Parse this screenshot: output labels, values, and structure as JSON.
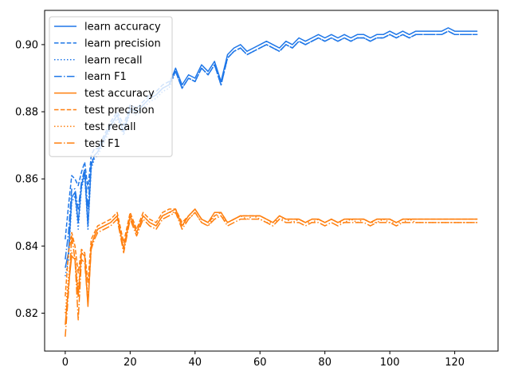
{
  "chart_data": {
    "type": "line",
    "title": "",
    "xlabel": "",
    "ylabel": "",
    "xlim": [
      -6.35,
      133.35
    ],
    "ylim": [
      0.8087,
      0.9102
    ],
    "xticks": [
      0,
      20,
      40,
      60,
      80,
      100,
      120
    ],
    "yticks": [
      0.82,
      0.84,
      0.86,
      0.88,
      0.9
    ],
    "grid": false,
    "legend_position": "top-left",
    "colors": {
      "learn": "#1f77e8",
      "test": "#ff7f0e"
    },
    "series": [
      {
        "name": "learn accuracy",
        "group": "learn",
        "linestyle": "solid",
        "x": [
          0,
          1,
          2,
          3,
          4,
          5,
          6,
          7,
          8,
          9,
          10,
          12,
          14,
          16,
          18,
          20,
          22,
          24,
          26,
          28,
          30,
          32,
          34,
          36,
          38,
          40,
          42,
          44,
          46,
          48,
          50,
          52,
          54,
          56,
          58,
          60,
          62,
          64,
          66,
          68,
          70,
          72,
          74,
          76,
          78,
          80,
          82,
          84,
          86,
          88,
          90,
          92,
          94,
          96,
          98,
          100,
          102,
          104,
          106,
          108,
          110,
          112,
          114,
          116,
          118,
          120,
          122,
          124,
          126,
          127
        ],
        "values": [
          0.8335,
          0.838,
          0.8545,
          0.856,
          0.847,
          0.858,
          0.862,
          0.846,
          0.864,
          0.867,
          0.868,
          0.872,
          0.876,
          0.879,
          0.874,
          0.881,
          0.88,
          0.882,
          0.884,
          0.885,
          0.887,
          0.888,
          0.893,
          0.888,
          0.891,
          0.89,
          0.894,
          0.892,
          0.895,
          0.889,
          0.897,
          0.899,
          0.9,
          0.898,
          0.899,
          0.9,
          0.901,
          0.9,
          0.899,
          0.901,
          0.9,
          0.902,
          0.901,
          0.902,
          0.903,
          0.902,
          0.903,
          0.902,
          0.903,
          0.902,
          0.903,
          0.903,
          0.902,
          0.903,
          0.903,
          0.904,
          0.903,
          0.904,
          0.903,
          0.904,
          0.904,
          0.904,
          0.904,
          0.904,
          0.905,
          0.904,
          0.904,
          0.904,
          0.904,
          0.904
        ]
      },
      {
        "name": "learn precision",
        "group": "learn",
        "linestyle": "dashed",
        "x": [
          0,
          1,
          2,
          3,
          4,
          5,
          6,
          7,
          8,
          9,
          10,
          12,
          14,
          16,
          18,
          20,
          22,
          24,
          26,
          28,
          30,
          32,
          34,
          36,
          38,
          40,
          42,
          44,
          46,
          48,
          50,
          52,
          54,
          56,
          58,
          60,
          62,
          64,
          66,
          68,
          70,
          72,
          74,
          76,
          78,
          80,
          82,
          84,
          86,
          88,
          90,
          92,
          94,
          96,
          98,
          100,
          102,
          104,
          106,
          108,
          110,
          112,
          114,
          116,
          118,
          120,
          122,
          124,
          126,
          127
        ],
        "values": [
          0.842,
          0.852,
          0.861,
          0.86,
          0.858,
          0.862,
          0.865,
          0.857,
          0.867,
          0.869,
          0.869,
          0.873,
          0.877,
          0.88,
          0.876,
          0.882,
          0.881,
          0.883,
          0.885,
          0.886,
          0.888,
          0.889,
          0.892,
          0.887,
          0.89,
          0.889,
          0.893,
          0.891,
          0.894,
          0.888,
          0.896,
          0.898,
          0.899,
          0.897,
          0.898,
          0.899,
          0.9,
          0.899,
          0.898,
          0.9,
          0.899,
          0.901,
          0.9,
          0.901,
          0.902,
          0.901,
          0.902,
          0.901,
          0.902,
          0.901,
          0.902,
          0.902,
          0.901,
          0.902,
          0.902,
          0.903,
          0.902,
          0.903,
          0.902,
          0.903,
          0.903,
          0.903,
          0.903,
          0.903,
          0.904,
          0.903,
          0.903,
          0.903,
          0.903,
          0.903
        ]
      },
      {
        "name": "learn recall",
        "group": "learn",
        "linestyle": "dotted",
        "x": [
          0,
          1,
          2,
          3,
          4,
          5,
          6,
          7,
          8,
          9,
          10,
          12,
          14,
          16,
          18,
          20,
          22,
          24,
          26,
          28,
          30,
          32,
          34,
          36,
          38,
          40,
          42,
          44,
          46,
          48,
          50,
          52,
          54,
          56,
          58,
          60,
          62,
          64,
          66,
          68,
          70,
          72,
          74,
          76,
          78,
          80,
          82,
          84,
          86,
          88,
          90,
          92,
          94,
          96,
          98,
          100,
          102,
          104,
          106,
          108,
          110,
          112,
          114,
          116,
          118,
          120,
          122,
          124,
          126,
          127
        ],
        "values": [
          0.831,
          0.836,
          0.853,
          0.855,
          0.845,
          0.857,
          0.861,
          0.845,
          0.863,
          0.866,
          0.867,
          0.871,
          0.875,
          0.878,
          0.873,
          0.88,
          0.879,
          0.881,
          0.883,
          0.884,
          0.886,
          0.887,
          0.892,
          0.887,
          0.89,
          0.889,
          0.893,
          0.891,
          0.894,
          0.888,
          0.896,
          0.898,
          0.899,
          0.897,
          0.898,
          0.899,
          0.9,
          0.899,
          0.898,
          0.9,
          0.899,
          0.901,
          0.9,
          0.901,
          0.902,
          0.901,
          0.902,
          0.901,
          0.902,
          0.901,
          0.902,
          0.902,
          0.901,
          0.902,
          0.902,
          0.903,
          0.902,
          0.903,
          0.902,
          0.903,
          0.903,
          0.903,
          0.903,
          0.903,
          0.904,
          0.903,
          0.903,
          0.903,
          0.903,
          0.903
        ]
      },
      {
        "name": "learn F1",
        "group": "learn",
        "linestyle": "dashdot",
        "x": [
          0,
          1,
          2,
          3,
          4,
          5,
          6,
          7,
          8,
          9,
          10,
          12,
          14,
          16,
          18,
          20,
          22,
          24,
          26,
          28,
          30,
          32,
          34,
          36,
          38,
          40,
          42,
          44,
          46,
          48,
          50,
          52,
          54,
          56,
          58,
          60,
          62,
          64,
          66,
          68,
          70,
          72,
          74,
          76,
          78,
          80,
          82,
          84,
          86,
          88,
          90,
          92,
          94,
          96,
          98,
          100,
          102,
          104,
          106,
          108,
          110,
          112,
          114,
          116,
          118,
          120,
          122,
          124,
          126,
          127
        ],
        "values": [
          0.836,
          0.844,
          0.857,
          0.857,
          0.851,
          0.859,
          0.863,
          0.851,
          0.865,
          0.867,
          0.868,
          0.872,
          0.876,
          0.879,
          0.874,
          0.881,
          0.88,
          0.882,
          0.884,
          0.885,
          0.887,
          0.888,
          0.892,
          0.887,
          0.89,
          0.889,
          0.893,
          0.891,
          0.894,
          0.888,
          0.896,
          0.898,
          0.899,
          0.897,
          0.898,
          0.899,
          0.9,
          0.899,
          0.898,
          0.9,
          0.899,
          0.901,
          0.9,
          0.901,
          0.902,
          0.901,
          0.902,
          0.901,
          0.902,
          0.901,
          0.902,
          0.902,
          0.901,
          0.902,
          0.902,
          0.903,
          0.902,
          0.903,
          0.902,
          0.903,
          0.903,
          0.903,
          0.903,
          0.903,
          0.904,
          0.903,
          0.903,
          0.903,
          0.903,
          0.903
        ]
      },
      {
        "name": "test accuracy",
        "group": "test",
        "linestyle": "solid",
        "x": [
          0,
          1,
          2,
          3,
          4,
          5,
          6,
          7,
          8,
          9,
          10,
          12,
          14,
          16,
          18,
          20,
          22,
          24,
          26,
          28,
          30,
          32,
          34,
          36,
          38,
          40,
          42,
          44,
          46,
          48,
          50,
          52,
          54,
          56,
          58,
          60,
          62,
          64,
          66,
          68,
          70,
          72,
          74,
          76,
          78,
          80,
          82,
          84,
          86,
          88,
          90,
          92,
          94,
          96,
          98,
          100,
          102,
          104,
          106,
          108,
          110,
          112,
          114,
          116,
          118,
          120,
          122,
          124,
          126,
          127
        ],
        "values": [
          0.8165,
          0.828,
          0.837,
          0.836,
          0.825,
          0.838,
          0.837,
          0.822,
          0.84,
          0.843,
          0.845,
          0.846,
          0.847,
          0.849,
          0.839,
          0.849,
          0.844,
          0.849,
          0.847,
          0.846,
          0.849,
          0.85,
          0.851,
          0.846,
          0.849,
          0.851,
          0.848,
          0.847,
          0.85,
          0.85,
          0.847,
          0.848,
          0.849,
          0.849,
          0.849,
          0.849,
          0.848,
          0.847,
          0.849,
          0.848,
          0.848,
          0.848,
          0.847,
          0.848,
          0.848,
          0.847,
          0.848,
          0.847,
          0.848,
          0.848,
          0.848,
          0.848,
          0.847,
          0.848,
          0.848,
          0.848,
          0.847,
          0.848,
          0.848,
          0.848,
          0.848,
          0.848,
          0.848,
          0.848,
          0.848,
          0.848,
          0.848,
          0.848,
          0.848,
          0.848
        ]
      },
      {
        "name": "test precision",
        "group": "test",
        "linestyle": "dashed",
        "x": [
          0,
          1,
          2,
          3,
          4,
          5,
          6,
          7,
          8,
          9,
          10,
          12,
          14,
          16,
          18,
          20,
          22,
          24,
          26,
          28,
          30,
          32,
          34,
          36,
          38,
          40,
          42,
          44,
          46,
          48,
          50,
          52,
          54,
          56,
          58,
          60,
          62,
          64,
          66,
          68,
          70,
          72,
          74,
          76,
          78,
          80,
          82,
          84,
          86,
          88,
          90,
          92,
          94,
          96,
          98,
          100,
          102,
          104,
          106,
          108,
          110,
          112,
          114,
          116,
          118,
          120,
          122,
          124,
          126,
          127
        ],
        "values": [
          0.825,
          0.838,
          0.844,
          0.84,
          0.832,
          0.839,
          0.838,
          0.829,
          0.842,
          0.844,
          0.846,
          0.847,
          0.848,
          0.85,
          0.841,
          0.85,
          0.845,
          0.85,
          0.848,
          0.847,
          0.85,
          0.851,
          0.851,
          0.847,
          0.849,
          0.851,
          0.848,
          0.847,
          0.849,
          0.85,
          0.847,
          0.848,
          0.849,
          0.849,
          0.849,
          0.849,
          0.848,
          0.847,
          0.849,
          0.848,
          0.848,
          0.848,
          0.847,
          0.848,
          0.848,
          0.847,
          0.848,
          0.847,
          0.848,
          0.848,
          0.848,
          0.848,
          0.847,
          0.848,
          0.848,
          0.848,
          0.847,
          0.848,
          0.848,
          0.848,
          0.848,
          0.848,
          0.848,
          0.848,
          0.848,
          0.848,
          0.848,
          0.848,
          0.848,
          0.848
        ]
      },
      {
        "name": "test recall",
        "group": "test",
        "linestyle": "dotted",
        "x": [
          0,
          1,
          2,
          3,
          4,
          5,
          6,
          7,
          8,
          9,
          10,
          12,
          14,
          16,
          18,
          20,
          22,
          24,
          26,
          28,
          30,
          32,
          34,
          36,
          38,
          40,
          42,
          44,
          46,
          48,
          50,
          52,
          54,
          56,
          58,
          60,
          62,
          64,
          66,
          68,
          70,
          72,
          74,
          76,
          78,
          80,
          82,
          84,
          86,
          88,
          90,
          92,
          94,
          96,
          98,
          100,
          102,
          104,
          106,
          108,
          110,
          112,
          114,
          116,
          118,
          120,
          122,
          124,
          126,
          127
        ],
        "values": [
          0.82,
          0.831,
          0.838,
          0.837,
          0.827,
          0.838,
          0.837,
          0.824,
          0.84,
          0.843,
          0.845,
          0.846,
          0.847,
          0.849,
          0.839,
          0.849,
          0.844,
          0.849,
          0.847,
          0.846,
          0.849,
          0.85,
          0.85,
          0.846,
          0.848,
          0.85,
          0.847,
          0.846,
          0.849,
          0.849,
          0.847,
          0.848,
          0.849,
          0.848,
          0.849,
          0.848,
          0.847,
          0.847,
          0.848,
          0.848,
          0.847,
          0.848,
          0.847,
          0.847,
          0.848,
          0.847,
          0.848,
          0.847,
          0.847,
          0.848,
          0.847,
          0.848,
          0.847,
          0.847,
          0.848,
          0.847,
          0.847,
          0.847,
          0.848,
          0.847,
          0.847,
          0.847,
          0.847,
          0.847,
          0.847,
          0.847,
          0.847,
          0.847,
          0.847,
          0.847
        ]
      },
      {
        "name": "test F1",
        "group": "test",
        "linestyle": "dashdot",
        "x": [
          0,
          1,
          2,
          3,
          4,
          5,
          6,
          7,
          8,
          9,
          10,
          12,
          14,
          16,
          18,
          20,
          22,
          24,
          26,
          28,
          30,
          32,
          34,
          36,
          38,
          40,
          42,
          44,
          46,
          48,
          50,
          52,
          54,
          56,
          58,
          60,
          62,
          64,
          66,
          68,
          70,
          72,
          74,
          76,
          78,
          80,
          82,
          84,
          86,
          88,
          90,
          92,
          94,
          96,
          98,
          100,
          102,
          104,
          106,
          108,
          110,
          112,
          114,
          116,
          118,
          120,
          122,
          124,
          126,
          127
        ],
        "values": [
          0.813,
          0.826,
          0.843,
          0.836,
          0.818,
          0.836,
          0.835,
          0.823,
          0.839,
          0.842,
          0.844,
          0.845,
          0.846,
          0.848,
          0.838,
          0.848,
          0.843,
          0.848,
          0.846,
          0.845,
          0.848,
          0.849,
          0.85,
          0.845,
          0.848,
          0.85,
          0.847,
          0.846,
          0.848,
          0.849,
          0.846,
          0.847,
          0.848,
          0.848,
          0.848,
          0.848,
          0.847,
          0.846,
          0.848,
          0.847,
          0.847,
          0.847,
          0.846,
          0.847,
          0.847,
          0.846,
          0.847,
          0.846,
          0.847,
          0.847,
          0.847,
          0.847,
          0.846,
          0.847,
          0.847,
          0.847,
          0.846,
          0.847,
          0.847,
          0.847,
          0.847,
          0.847,
          0.847,
          0.847,
          0.847,
          0.847,
          0.847,
          0.847,
          0.847,
          0.847
        ]
      }
    ]
  }
}
